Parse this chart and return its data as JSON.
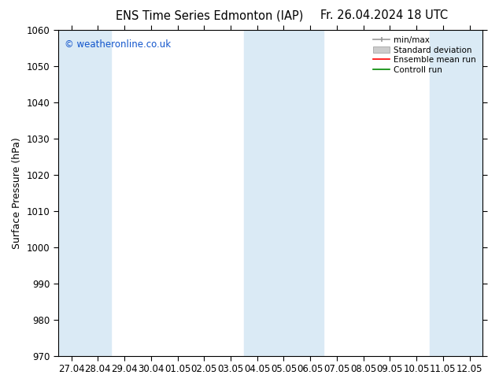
{
  "title_left": "ENS Time Series Edmonton (IAP)",
  "title_right": "Fr. 26.04.2024 18 UTC",
  "ylabel": "Surface Pressure (hPa)",
  "ylim": [
    970,
    1060
  ],
  "yticks": [
    970,
    980,
    990,
    1000,
    1010,
    1020,
    1030,
    1040,
    1050,
    1060
  ],
  "xtick_labels": [
    "27.04",
    "28.04",
    "29.04",
    "30.04",
    "01.05",
    "02.05",
    "03.05",
    "04.05",
    "05.05",
    "06.05",
    "07.05",
    "08.05",
    "09.05",
    "10.05",
    "11.05",
    "12.05"
  ],
  "shaded_indices": [
    0,
    1,
    7,
    8,
    9,
    14,
    15
  ],
  "band_color": "#daeaf5",
  "background_color": "#ffffff",
  "watermark": "© weatheronline.co.uk",
  "legend_labels": [
    "min/max",
    "Standard deviation",
    "Ensemble mean run",
    "Controll run"
  ],
  "legend_colors": [
    "#999999",
    "#cccccc",
    "#ff0000",
    "#008800"
  ],
  "title_fontsize": 10.5,
  "axis_label_fontsize": 9,
  "tick_fontsize": 8.5,
  "legend_fontsize": 7.5
}
